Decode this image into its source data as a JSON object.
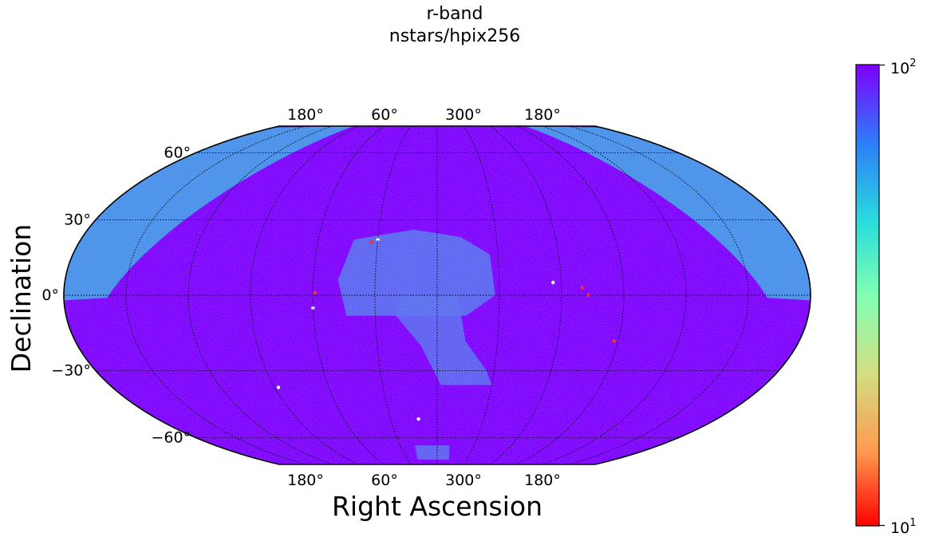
{
  "chart_data": {
    "type": "heatmap",
    "projection": "mollweide",
    "title": "r-band",
    "subtitle": "nstars/hpix256",
    "xlabel": "Right Ascension",
    "ylabel": "Declination",
    "x_tick_labels_top": [
      "180°",
      "60°",
      "300°",
      "180°"
    ],
    "x_tick_labels_bottom": [
      "180°",
      "60°",
      "300°",
      "180°"
    ],
    "y_tick_labels": [
      "60°",
      "30°",
      "0°",
      "−30°",
      "−60°"
    ],
    "y_ticks": [
      60,
      30,
      0,
      -30,
      -60
    ],
    "meridians_ra": [
      180,
      150,
      120,
      90,
      60,
      30,
      0,
      330,
      300,
      270,
      240,
      210,
      180
    ],
    "dec_range": [
      -75,
      75
    ],
    "grid": true,
    "colorbar": {
      "scale": "log",
      "range": [
        10,
        100
      ],
      "colormap": "rainbow",
      "base": "10",
      "max_exponent": "2",
      "min_exponent": "1",
      "colors": [
        "#ff0000",
        "#ff9a4e",
        "#d4dd80",
        "#80ffb4",
        "#2adcdc",
        "#2c7ef8",
        "#7f00ff"
      ]
    },
    "background_color": "#7f00ff",
    "galactic_band_color": "#3fa9e6",
    "footprint_color": "#5a6ff0"
  }
}
